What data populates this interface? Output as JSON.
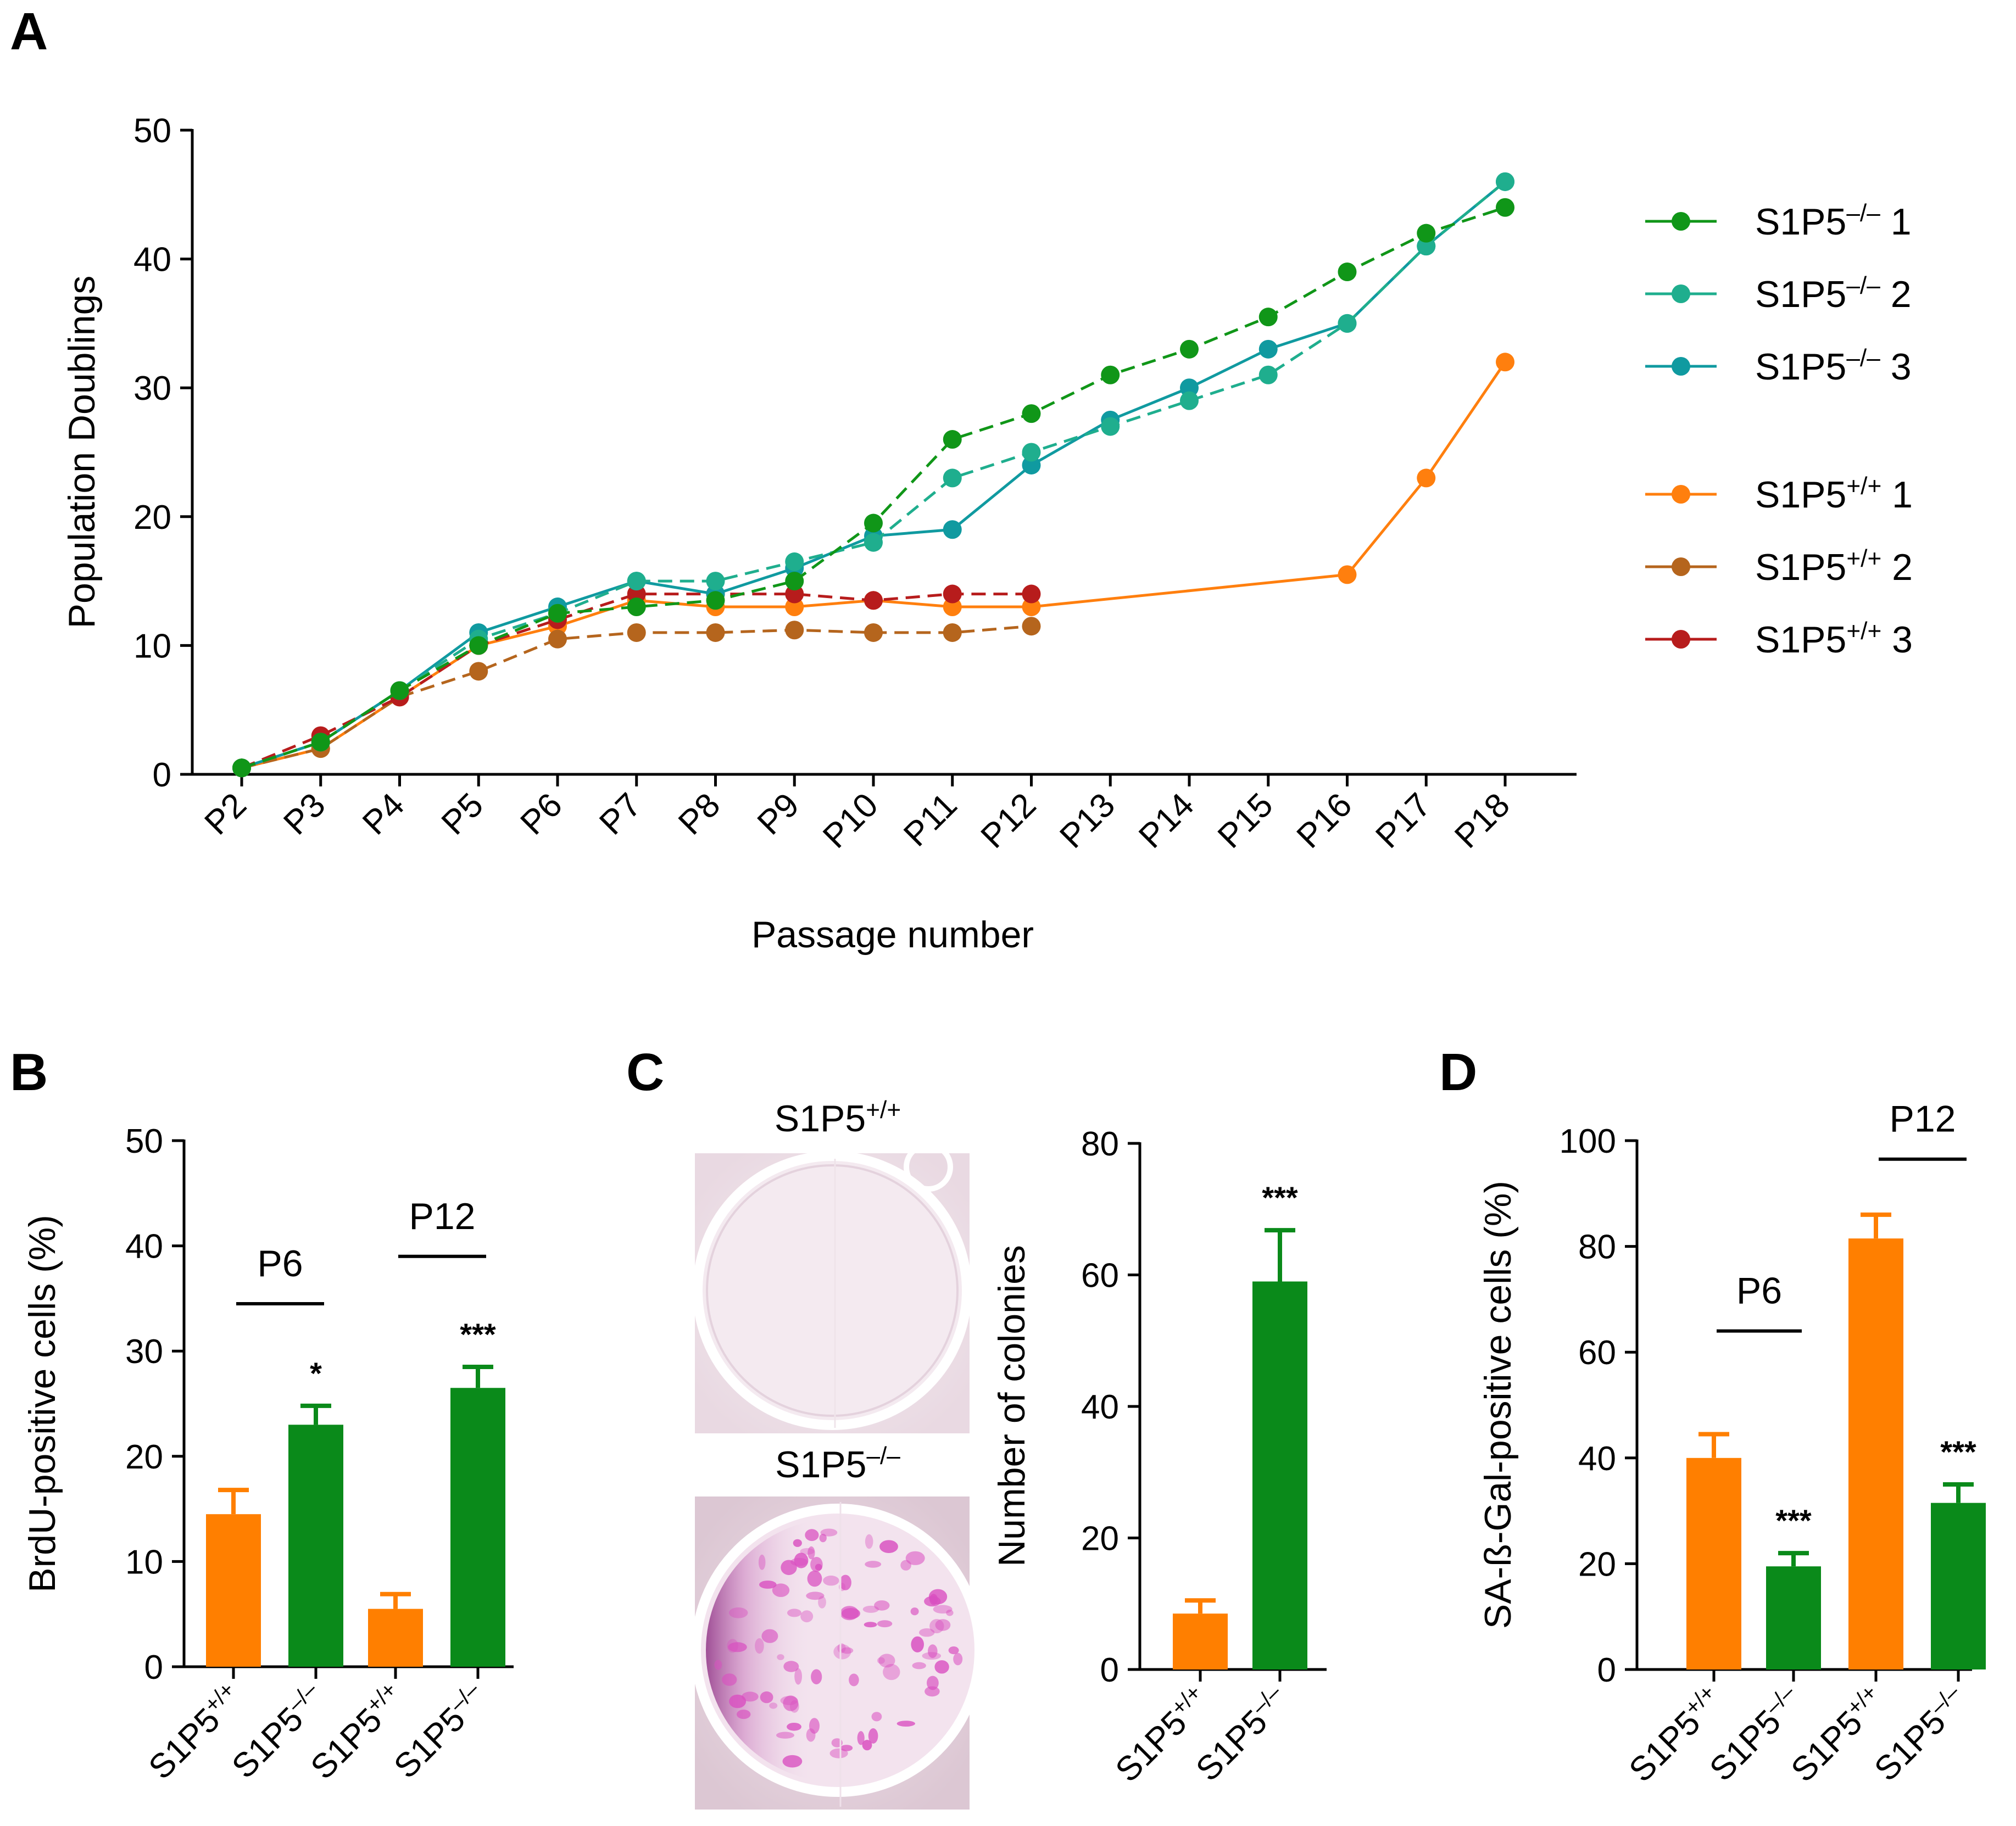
{
  "panels": {
    "A": {
      "letter": "A"
    },
    "B": {
      "letter": "B"
    },
    "C": {
      "letter": "C",
      "image_labels": [
        {
          "base": "S1P5",
          "sup": "+/+"
        },
        {
          "base": "S1P5",
          "sup": "–/–"
        }
      ]
    },
    "D": {
      "letter": "D"
    }
  },
  "colors": {
    "ko1": "#109618",
    "ko2": "#1fae8e",
    "ko3": "#109aa0",
    "wt1": "#ff7f0e",
    "wt2": "#b5651d",
    "wt3": "#b71c1c",
    "bar_wt": "#ff7f00",
    "bar_ko": "#0a8a1a"
  },
  "chart_data": [
    {
      "panel": "A",
      "type": "line",
      "xlabel": "Passage number",
      "ylabel": "Population Doublings",
      "ylim": [
        0,
        50
      ],
      "yticks": [
        0,
        10,
        20,
        30,
        40,
        50
      ],
      "categories": [
        "P2",
        "P3",
        "P4",
        "P5",
        "P6",
        "P7",
        "P8",
        "P9",
        "P10",
        "P11",
        "P12",
        "P13",
        "P14",
        "P15",
        "P16",
        "P17",
        "P18"
      ],
      "series": [
        {
          "name": "S1P5–/– 1",
          "base": "S1P5",
          "sup": "–/–",
          "num": "1",
          "color_key": "ko1",
          "dash": true,
          "values": [
            0.5,
            2.5,
            6.5,
            10,
            12.5,
            13,
            13.5,
            15,
            19.5,
            26,
            28,
            31,
            33,
            35.5,
            39,
            42,
            44
          ]
        },
        {
          "name": "S1P5–/– 2",
          "base": "S1P5",
          "sup": "–/–",
          "num": "2",
          "color_key": "ko2",
          "dash": true,
          "values": [
            0.5,
            2.5,
            6.5,
            10.5,
            12.5,
            15,
            15,
            16.5,
            18,
            23,
            25,
            27,
            29,
            31,
            35,
            41,
            46
          ]
        },
        {
          "name": "S1P5–/– 3",
          "base": "S1P5",
          "sup": "–/–",
          "num": "3",
          "color_key": "ko3",
          "dash": false,
          "values": [
            0.5,
            2.5,
            6.5,
            11,
            13,
            15,
            14,
            16,
            18.5,
            19,
            24,
            27.5,
            30,
            33,
            35,
            41,
            46
          ]
        },
        {
          "name": "S1P5+/+ 1",
          "base": "S1P5",
          "sup": "+/+",
          "num": "1",
          "color_key": "wt1",
          "dash": false,
          "values": [
            0.5,
            2,
            6,
            10,
            11.5,
            13.5,
            13,
            13,
            13.5,
            13,
            13,
            null,
            null,
            null,
            15.5,
            23,
            32
          ]
        },
        {
          "name": "S1P5+/+ 2",
          "base": "S1P5",
          "sup": "+/+",
          "num": "2",
          "color_key": "wt2",
          "dash": true,
          "values": [
            0.5,
            2,
            6,
            8,
            10.5,
            11,
            11,
            11.2,
            11,
            11,
            11.5,
            null,
            null,
            null,
            null,
            null,
            null
          ]
        },
        {
          "name": "S1P5+/+ 3",
          "base": "S1P5",
          "sup": "+/+",
          "num": "3",
          "color_key": "wt3",
          "dash": true,
          "values": [
            0.5,
            3,
            6,
            10,
            12,
            14,
            14,
            14,
            13.5,
            14,
            14,
            null,
            null,
            null,
            null,
            null,
            null
          ]
        }
      ]
    },
    {
      "panel": "B",
      "type": "bar",
      "ylabel": "BrdU-positive cells (%)",
      "ylim": [
        0,
        50
      ],
      "yticks": [
        0,
        10,
        20,
        30,
        40,
        50
      ],
      "categories": [
        {
          "base": "S1P5",
          "sup": "+/+"
        },
        {
          "base": "S1P5",
          "sup": "–/–"
        },
        {
          "base": "S1P5",
          "sup": "+/+"
        },
        {
          "base": "S1P5",
          "sup": "–/–"
        }
      ],
      "values": [
        14.5,
        23,
        5.5,
        26.5
      ],
      "errors": [
        2.3,
        1.8,
        1.4,
        2.0
      ],
      "color_keys": [
        "bar_wt",
        "bar_ko",
        "bar_wt",
        "bar_ko"
      ],
      "significance": [
        "",
        "*",
        "",
        "***"
      ],
      "groups": [
        {
          "label": "P6",
          "level": 34.5,
          "bars": [
            0,
            1
          ]
        },
        {
          "label": "P12",
          "level": 39,
          "bars": [
            2,
            3
          ]
        }
      ]
    },
    {
      "panel": "C",
      "type": "bar",
      "ylabel": "Number of colonies",
      "ylim": [
        0,
        80
      ],
      "yticks": [
        0,
        20,
        40,
        60,
        80
      ],
      "categories": [
        {
          "base": "S1P5",
          "sup": "+/+"
        },
        {
          "base": "S1P5",
          "sup": "–/–"
        }
      ],
      "values": [
        8.5,
        59
      ],
      "errors": [
        2.0,
        7.8
      ],
      "color_keys": [
        "bar_wt",
        "bar_ko"
      ],
      "significance": [
        "",
        "***"
      ]
    },
    {
      "panel": "D",
      "type": "bar",
      "ylabel": "SA-ß-Gal-positive cells (%)",
      "ylim": [
        0,
        100
      ],
      "yticks": [
        0,
        20,
        40,
        60,
        80,
        100
      ],
      "categories": [
        {
          "base": "S1P5",
          "sup": "+/+"
        },
        {
          "base": "S1P5",
          "sup": "–/–"
        },
        {
          "base": "S1P5",
          "sup": "+/+"
        },
        {
          "base": "S1P5",
          "sup": "–/–"
        }
      ],
      "values": [
        40,
        19.5,
        81.5,
        31.5
      ],
      "errors": [
        4.5,
        2.5,
        4.5,
        3.5
      ],
      "color_keys": [
        "bar_wt",
        "bar_ko",
        "bar_wt",
        "bar_ko"
      ],
      "significance": [
        "",
        "***",
        "",
        "***"
      ],
      "groups": [
        {
          "label": "P6",
          "level": 64,
          "bars": [
            0,
            1
          ]
        },
        {
          "label": "P12",
          "level": 96.5,
          "bars": [
            2,
            3
          ]
        }
      ]
    }
  ]
}
